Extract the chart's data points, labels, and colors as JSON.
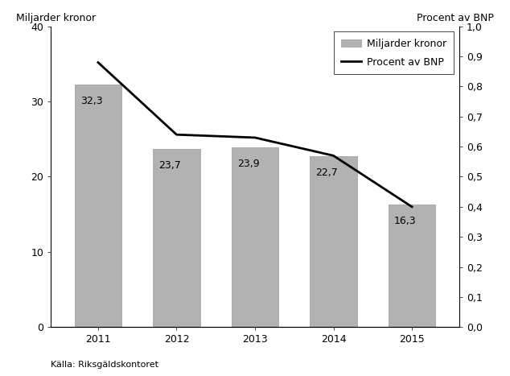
{
  "years": [
    2011,
    2012,
    2013,
    2014,
    2015
  ],
  "bar_values": [
    32.3,
    23.7,
    23.9,
    22.7,
    16.3
  ],
  "line_values": [
    0.88,
    0.64,
    0.63,
    0.57,
    0.4
  ],
  "bar_color": "#b2b2b2",
  "bar_edgecolor": "#999999",
  "line_color": "#000000",
  "bar_labels": [
    "32,3",
    "23,7",
    "23,9",
    "22,7",
    "16,3"
  ],
  "left_ylabel": "Miljarder kronor",
  "right_ylabel": "Procent av BNP",
  "ylim_left": [
    0,
    40
  ],
  "ylim_right": [
    0.0,
    1.0
  ],
  "yticks_left": [
    0,
    10,
    20,
    30,
    40
  ],
  "yticks_right": [
    0.0,
    0.1,
    0.2,
    0.3,
    0.4,
    0.5,
    0.6,
    0.7,
    0.8,
    0.9,
    1.0
  ],
  "legend_bar_label": "Miljarder kronor",
  "legend_line_label": "Procent av BNP",
  "source_text": "Källa: Riksgäldskontoret",
  "background_color": "#ffffff",
  "bar_label_fontsize": 9,
  "axis_label_fontsize": 9,
  "tick_fontsize": 9,
  "legend_fontsize": 9,
  "source_fontsize": 8,
  "xlim": [
    2010.4,
    2015.6
  ],
  "bar_width": 0.6,
  "line_linewidth": 2.0
}
